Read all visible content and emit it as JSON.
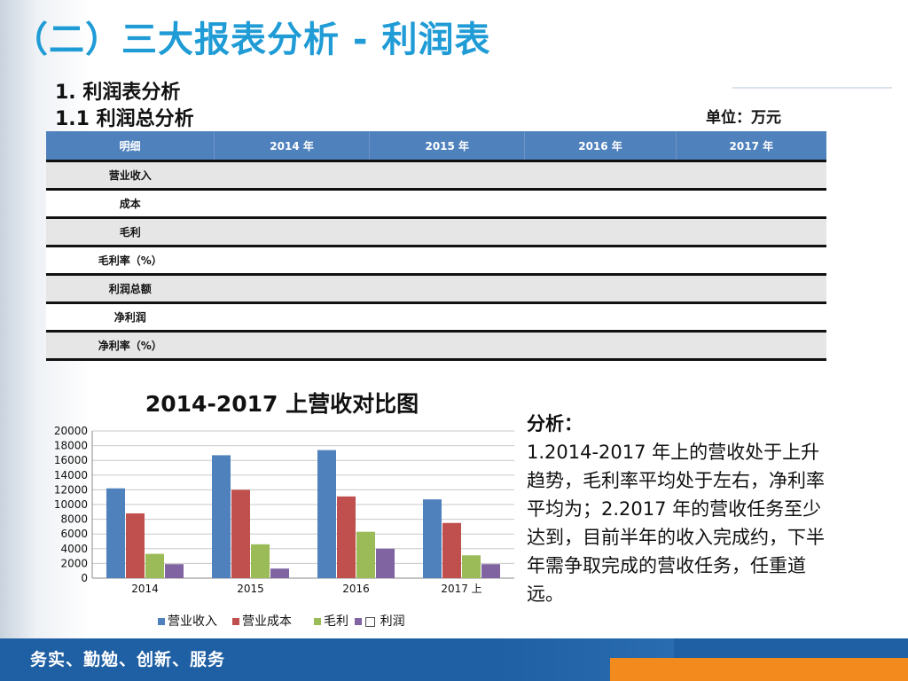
{
  "header": {
    "title": "（二）三大报表分析 - 利润表",
    "section": "1. 利润表分析",
    "subsection": "1.1 利润总分析",
    "unit": "单位：万元"
  },
  "table": {
    "columns": [
      "明细",
      "2014 年",
      "2015 年",
      "2016 年",
      "2017 年"
    ],
    "rows": [
      "营业收入",
      "成本",
      "毛利",
      "毛利率（%）",
      "利润总额",
      "净利润",
      "净利率（%）"
    ]
  },
  "chart_data": {
    "type": "bar",
    "title": "2014-2017 上营收对比图",
    "categories": [
      "2014",
      "2015",
      "2016",
      "2017 上"
    ],
    "series": [
      {
        "name": "营业收入",
        "color": "#4f81bd",
        "values": [
          12200,
          16700,
          17400,
          10700
        ]
      },
      {
        "name": "营业成本",
        "color": "#c0504d",
        "values": [
          8800,
          12000,
          11100,
          7500
        ]
      },
      {
        "name": "毛利",
        "color": "#9bbb59",
        "values": [
          3300,
          4600,
          6300,
          3100
        ]
      },
      {
        "name": "□ 利润",
        "color": "#8064a2",
        "values": [
          1900,
          1300,
          4000,
          1900
        ]
      }
    ],
    "ylim": [
      0,
      20000
    ],
    "yticks": [
      "0",
      "2000",
      "4000",
      "6000",
      "8000",
      "10000",
      "12000",
      "14000",
      "16000",
      "18000",
      "20000"
    ],
    "grid": true,
    "legend": "bottom"
  },
  "analysis": {
    "head": "分析：",
    "body": "1.2014-2017 年上的营收处于上升趋势，毛利率平均处于左右，净利率平均为；2.2017 年的营收任务至少达到，目前半年的收入完成约，下半年需争取完成的营收任务，任重道远。"
  },
  "footer": {
    "slogan": "务实、勤勉、创新、服务"
  }
}
